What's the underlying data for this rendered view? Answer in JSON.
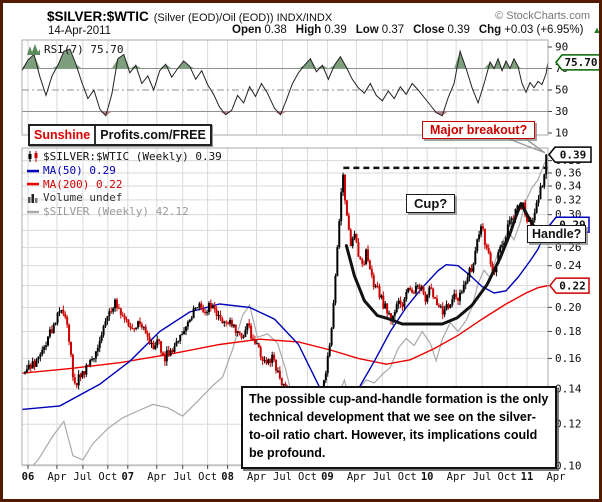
{
  "header": {
    "symbol": "$SILVER:$WTIC",
    "desc": "(Silver (EOD)/Oil (EOD)) INDX/INDX",
    "copyright": "© StockCharts.com",
    "date": "14-Apr-2011",
    "quote": [
      {
        "label": "Open",
        "value": "0.38"
      },
      {
        "label": "High",
        "value": "0.39"
      },
      {
        "label": "Low",
        "value": "0.37"
      },
      {
        "label": "Close",
        "value": "0.39"
      },
      {
        "label": "Chg",
        "value": "+0.03 (+6.95%)"
      }
    ],
    "chg_dir": "▲"
  },
  "rsi": {
    "label": "RSI(7) 75.70",
    "value_box": "75.70",
    "axis_labels": [
      "90",
      "70",
      "50",
      "30",
      "10"
    ],
    "axis_values": [
      90,
      70,
      50,
      30,
      10
    ]
  },
  "legend": [
    {
      "icon": "candlestick-icon",
      "text": "$SILVER:$WTIC (Weekly) 0.39",
      "color": "#111111"
    },
    {
      "icon": "ma50-dash-icon",
      "text": "MA(50) 0.29",
      "color": "#0000bb"
    },
    {
      "icon": "ma200-dash-icon",
      "text": "MA(200) 0.22",
      "color": "#cc0000"
    },
    {
      "icon": "volume-bars-icon",
      "text": "Volume undef",
      "color": "#333333"
    },
    {
      "icon": "silver-dash-icon",
      "text": "$SILVER (Weekly) 42.12",
      "color": "#999999"
    }
  ],
  "annotations": {
    "sunshine_left": "Sunshine",
    "sunshine_right": "Profits.com/FREE",
    "major_breakout": "Major breakout?",
    "cup": "Cup?",
    "handle": "Handle?",
    "commentary": "The possible cup-and-handle formation is the only technical development that we see on the silver-to-oil ratio chart. However, its implications could be profound.",
    "price_box": "0.39",
    "ma50_box": "0.29",
    "ma200_box": "0.22"
  },
  "axis": {
    "price_labels": [
      "0.38",
      "0.36",
      "0.34",
      "0.32",
      "0.30",
      "0.28",
      "0.26",
      "0.24",
      "0.22",
      "0.20",
      "0.18",
      "0.16",
      "0.14",
      "0.12",
      "0.10"
    ],
    "price_values": [
      0.38,
      0.36,
      0.34,
      0.32,
      0.3,
      0.28,
      0.26,
      0.24,
      0.22,
      0.2,
      0.18,
      0.16,
      0.14,
      0.12,
      0.1
    ],
    "time_labels": [
      [
        "06",
        2006.0,
        1
      ],
      [
        "Apr",
        2006.29,
        0
      ],
      [
        "Jul",
        2006.55,
        0
      ],
      [
        "Oct",
        2006.8,
        0
      ],
      [
        "07",
        2007.0,
        1
      ],
      [
        "Apr",
        2007.29,
        0
      ],
      [
        "Jul",
        2007.55,
        0
      ],
      [
        "Oct",
        2007.8,
        0
      ],
      [
        "08",
        2008.0,
        1
      ],
      [
        "Apr",
        2008.29,
        0
      ],
      [
        "Jul",
        2008.55,
        0
      ],
      [
        "Oct",
        2008.8,
        0
      ],
      [
        "09",
        2009.0,
        1
      ],
      [
        "Apr",
        2009.29,
        0
      ],
      [
        "Jul",
        2009.55,
        0
      ],
      [
        "Oct",
        2009.8,
        0
      ],
      [
        "10",
        2010.0,
        1
      ],
      [
        "Apr",
        2010.29,
        0
      ],
      [
        "Jul",
        2010.55,
        0
      ],
      [
        "Oct",
        2010.8,
        0
      ],
      [
        "11",
        2011.0,
        1
      ],
      [
        "Apr",
        2011.29,
        0
      ]
    ]
  },
  "chart_data": {
    "type": "candlestick",
    "title": "$SILVER:$WTIC weekly ratio with RSI(7), MA(50), MA(200) and $SILVER overlay",
    "price_scale": "log",
    "y_axis_range": [
      0.1,
      0.4
    ],
    "x_axis_years": [
      2006.0,
      2011.3
    ],
    "last_close": 0.39,
    "rsi_current": 75.7,
    "rsi_thresholds": [
      70,
      50,
      30
    ],
    "resistance_level": 0.368,
    "resistance_span": [
      2009.16,
      2011.22
    ],
    "ratio_close": [
      [
        2005.97,
        0.15
      ],
      [
        2006.04,
        0.155
      ],
      [
        2006.12,
        0.162
      ],
      [
        2006.2,
        0.175
      ],
      [
        2006.28,
        0.19
      ],
      [
        2006.34,
        0.2
      ],
      [
        2006.4,
        0.183
      ],
      [
        2006.46,
        0.14
      ],
      [
        2006.52,
        0.148
      ],
      [
        2006.58,
        0.152
      ],
      [
        2006.64,
        0.158
      ],
      [
        2006.7,
        0.17
      ],
      [
        2006.76,
        0.185
      ],
      [
        2006.82,
        0.198
      ],
      [
        2006.88,
        0.204
      ],
      [
        2006.94,
        0.195
      ],
      [
        2007.0,
        0.186
      ],
      [
        2007.06,
        0.182
      ],
      [
        2007.12,
        0.19
      ],
      [
        2007.18,
        0.178
      ],
      [
        2007.24,
        0.168
      ],
      [
        2007.3,
        0.173
      ],
      [
        2007.36,
        0.16
      ],
      [
        2007.42,
        0.165
      ],
      [
        2007.48,
        0.17
      ],
      [
        2007.54,
        0.176
      ],
      [
        2007.6,
        0.186
      ],
      [
        2007.66,
        0.199
      ],
      [
        2007.72,
        0.205
      ],
      [
        2007.78,
        0.195
      ],
      [
        2007.84,
        0.204
      ],
      [
        2007.9,
        0.195
      ],
      [
        2007.96,
        0.186
      ],
      [
        2008.02,
        0.191
      ],
      [
        2008.08,
        0.182
      ],
      [
        2008.14,
        0.176
      ],
      [
        2008.2,
        0.184
      ],
      [
        2008.26,
        0.174
      ],
      [
        2008.32,
        0.165
      ],
      [
        2008.39,
        0.155
      ],
      [
        2008.45,
        0.16
      ],
      [
        2008.51,
        0.15
      ],
      [
        2008.57,
        0.14
      ],
      [
        2008.63,
        0.13
      ],
      [
        2008.69,
        0.115
      ],
      [
        2008.75,
        0.1
      ],
      [
        2008.81,
        0.106
      ],
      [
        2008.87,
        0.12
      ],
      [
        2008.93,
        0.135
      ],
      [
        2008.99,
        0.152
      ],
      [
        2009.05,
        0.185
      ],
      [
        2009.11,
        0.27
      ],
      [
        2009.15,
        0.365
      ],
      [
        2009.19,
        0.3
      ],
      [
        2009.23,
        0.262
      ],
      [
        2009.27,
        0.278
      ],
      [
        2009.31,
        0.25
      ],
      [
        2009.35,
        0.24
      ],
      [
        2009.39,
        0.254
      ],
      [
        2009.43,
        0.235
      ],
      [
        2009.47,
        0.22
      ],
      [
        2009.51,
        0.214
      ],
      [
        2009.55,
        0.205
      ],
      [
        2009.59,
        0.198
      ],
      [
        2009.63,
        0.191
      ],
      [
        2009.67,
        0.196
      ],
      [
        2009.71,
        0.205
      ],
      [
        2009.75,
        0.198
      ],
      [
        2009.79,
        0.21
      ],
      [
        2009.83,
        0.22
      ],
      [
        2009.87,
        0.214
      ],
      [
        2009.91,
        0.224
      ],
      [
        2009.95,
        0.214
      ],
      [
        2009.99,
        0.205
      ],
      [
        2010.03,
        0.22
      ],
      [
        2010.07,
        0.21
      ],
      [
        2010.11,
        0.202
      ],
      [
        2010.15,
        0.196
      ],
      [
        2010.19,
        0.205
      ],
      [
        2010.23,
        0.198
      ],
      [
        2010.27,
        0.21
      ],
      [
        2010.31,
        0.205
      ],
      [
        2010.35,
        0.216
      ],
      [
        2010.39,
        0.225
      ],
      [
        2010.43,
        0.235
      ],
      [
        2010.47,
        0.245
      ],
      [
        2010.51,
        0.27
      ],
      [
        2010.55,
        0.285
      ],
      [
        2010.59,
        0.258
      ],
      [
        2010.63,
        0.245
      ],
      [
        2010.67,
        0.235
      ],
      [
        2010.71,
        0.25
      ],
      [
        2010.75,
        0.262
      ],
      [
        2010.79,
        0.275
      ],
      [
        2010.83,
        0.29
      ],
      [
        2010.87,
        0.3
      ],
      [
        2010.91,
        0.31
      ],
      [
        2010.95,
        0.315
      ],
      [
        2010.99,
        0.3
      ],
      [
        2011.03,
        0.285
      ],
      [
        2011.07,
        0.295
      ],
      [
        2011.11,
        0.32
      ],
      [
        2011.15,
        0.34
      ],
      [
        2011.19,
        0.37
      ],
      [
        2011.21,
        0.39
      ]
    ],
    "ma50": [
      [
        2005.94,
        0.128
      ],
      [
        2006.32,
        0.13
      ],
      [
        2006.72,
        0.143
      ],
      [
        2007.02,
        0.158
      ],
      [
        2007.32,
        0.18
      ],
      [
        2007.62,
        0.196
      ],
      [
        2007.92,
        0.203
      ],
      [
        2008.22,
        0.2
      ],
      [
        2008.47,
        0.19
      ],
      [
        2008.71,
        0.17
      ],
      [
        2008.93,
        0.14
      ],
      [
        2009.03,
        0.127
      ],
      [
        2009.13,
        0.125
      ],
      [
        2009.31,
        0.14
      ],
      [
        2009.47,
        0.158
      ],
      [
        2009.63,
        0.18
      ],
      [
        2009.79,
        0.2
      ],
      [
        2009.95,
        0.218
      ],
      [
        2010.11,
        0.235
      ],
      [
        2010.19,
        0.241
      ],
      [
        2010.31,
        0.24
      ],
      [
        2010.43,
        0.23
      ],
      [
        2010.55,
        0.219
      ],
      [
        2010.67,
        0.213
      ],
      [
        2010.79,
        0.215
      ],
      [
        2010.91,
        0.228
      ],
      [
        2011.03,
        0.245
      ],
      [
        2011.11,
        0.258
      ],
      [
        2011.21,
        0.285
      ]
    ],
    "ma200": [
      [
        2005.94,
        0.15
      ],
      [
        2006.42,
        0.153
      ],
      [
        2006.92,
        0.157
      ],
      [
        2007.42,
        0.163
      ],
      [
        2007.92,
        0.17
      ],
      [
        2008.32,
        0.174
      ],
      [
        2008.71,
        0.172
      ],
      [
        2009.03,
        0.166
      ],
      [
        2009.31,
        0.16
      ],
      [
        2009.59,
        0.156
      ],
      [
        2009.83,
        0.159
      ],
      [
        2010.07,
        0.167
      ],
      [
        2010.31,
        0.177
      ],
      [
        2010.55,
        0.19
      ],
      [
        2010.79,
        0.203
      ],
      [
        2010.99,
        0.213
      ],
      [
        2011.11,
        0.218
      ],
      [
        2011.21,
        0.22
      ]
    ],
    "silver": [
      [
        2005.94,
        8.8
      ],
      [
        2006.1,
        9.6
      ],
      [
        2006.25,
        10.8
      ],
      [
        2006.36,
        11.6
      ],
      [
        2006.45,
        9.8
      ],
      [
        2006.55,
        9.6
      ],
      [
        2006.65,
        10.4
      ],
      [
        2006.8,
        11.2
      ],
      [
        2006.95,
        11.8
      ],
      [
        2007.1,
        12.2
      ],
      [
        2007.25,
        12.6
      ],
      [
        2007.4,
        12.4
      ],
      [
        2007.55,
        11.9
      ],
      [
        2007.7,
        12.8
      ],
      [
        2007.85,
        13.8
      ],
      [
        2007.95,
        14.4
      ],
      [
        2008.05,
        16.5
      ],
      [
        2008.15,
        19.5
      ],
      [
        2008.22,
        20.5
      ],
      [
        2008.3,
        17.5
      ],
      [
        2008.4,
        17.8
      ],
      [
        2008.5,
        17.0
      ],
      [
        2008.58,
        15.0
      ],
      [
        2008.65,
        13.0
      ],
      [
        2008.72,
        10.5
      ],
      [
        2008.78,
        9.0
      ],
      [
        2008.85,
        9.6
      ],
      [
        2008.93,
        10.8
      ],
      [
        2009.01,
        11.4
      ],
      [
        2009.1,
        13.0
      ],
      [
        2009.17,
        14.2
      ],
      [
        2009.23,
        12.6
      ],
      [
        2009.31,
        13.6
      ],
      [
        2009.39,
        14.2
      ],
      [
        2009.47,
        14.0
      ],
      [
        2009.55,
        14.6
      ],
      [
        2009.63,
        15.1
      ],
      [
        2009.71,
        16.6
      ],
      [
        2009.79,
        17.4
      ],
      [
        2009.87,
        16.8
      ],
      [
        2009.95,
        18.0
      ],
      [
        2010.03,
        17.0
      ],
      [
        2010.09,
        15.6
      ],
      [
        2010.15,
        17.3
      ],
      [
        2010.23,
        18.8
      ],
      [
        2010.31,
        18.0
      ],
      [
        2010.39,
        19.0
      ],
      [
        2010.45,
        20.3
      ],
      [
        2010.51,
        22.8
      ],
      [
        2010.57,
        24.3
      ],
      [
        2010.63,
        23.4
      ],
      [
        2010.69,
        25.8
      ],
      [
        2010.75,
        27.8
      ],
      [
        2010.81,
        29.4
      ],
      [
        2010.87,
        28.2
      ],
      [
        2010.93,
        30.6
      ],
      [
        2010.99,
        34.2
      ],
      [
        2011.05,
        36.4
      ],
      [
        2011.11,
        37.8
      ],
      [
        2011.17,
        40.8
      ],
      [
        2011.21,
        42.12
      ]
    ],
    "rsi7": [
      [
        2005.94,
        68
      ],
      [
        2006.0,
        78
      ],
      [
        2006.06,
        83
      ],
      [
        2006.12,
        62
      ],
      [
        2006.18,
        45
      ],
      [
        2006.24,
        63
      ],
      [
        2006.3,
        73
      ],
      [
        2006.36,
        86
      ],
      [
        2006.42,
        88
      ],
      [
        2006.48,
        74
      ],
      [
        2006.54,
        57
      ],
      [
        2006.6,
        42
      ],
      [
        2006.66,
        50
      ],
      [
        2006.72,
        32
      ],
      [
        2006.78,
        26
      ],
      [
        2006.84,
        46
      ],
      [
        2006.9,
        79
      ],
      [
        2006.96,
        83
      ],
      [
        2007.02,
        66
      ],
      [
        2007.08,
        73
      ],
      [
        2007.14,
        56
      ],
      [
        2007.2,
        63
      ],
      [
        2007.26,
        50
      ],
      [
        2007.32,
        68
      ],
      [
        2007.38,
        74
      ],
      [
        2007.44,
        62
      ],
      [
        2007.5,
        70
      ],
      [
        2007.56,
        77
      ],
      [
        2007.62,
        72
      ],
      [
        2007.68,
        60
      ],
      [
        2007.74,
        68
      ],
      [
        2007.8,
        55
      ],
      [
        2007.86,
        46
      ],
      [
        2007.92,
        34
      ],
      [
        2007.98,
        27
      ],
      [
        2008.04,
        31
      ],
      [
        2008.1,
        45
      ],
      [
        2008.16,
        38
      ],
      [
        2008.22,
        53
      ],
      [
        2008.28,
        44
      ],
      [
        2008.34,
        56
      ],
      [
        2008.4,
        47
      ],
      [
        2008.47,
        33
      ],
      [
        2008.53,
        27
      ],
      [
        2008.59,
        41
      ],
      [
        2008.65,
        56
      ],
      [
        2008.71,
        66
      ],
      [
        2008.77,
        73
      ],
      [
        2008.83,
        79
      ],
      [
        2008.89,
        67
      ],
      [
        2008.95,
        73
      ],
      [
        2009.01,
        60
      ],
      [
        2009.07,
        73
      ],
      [
        2009.13,
        81
      ],
      [
        2009.19,
        71
      ],
      [
        2009.25,
        60
      ],
      [
        2009.31,
        52
      ],
      [
        2009.37,
        47
      ],
      [
        2009.43,
        56
      ],
      [
        2009.49,
        45
      ],
      [
        2009.55,
        40
      ],
      [
        2009.61,
        49
      ],
      [
        2009.67,
        42
      ],
      [
        2009.73,
        53
      ],
      [
        2009.79,
        46
      ],
      [
        2009.85,
        56
      ],
      [
        2009.91,
        50
      ],
      [
        2009.97,
        43
      ],
      [
        2010.03,
        36
      ],
      [
        2010.09,
        29
      ],
      [
        2010.15,
        26
      ],
      [
        2010.21,
        43
      ],
      [
        2010.27,
        56
      ],
      [
        2010.33,
        86
      ],
      [
        2010.39,
        70
      ],
      [
        2010.45,
        52
      ],
      [
        2010.51,
        38
      ],
      [
        2010.57,
        56
      ],
      [
        2010.63,
        76
      ],
      [
        2010.67,
        70
      ],
      [
        2010.71,
        79
      ],
      [
        2010.75,
        68
      ],
      [
        2010.79,
        77
      ],
      [
        2010.83,
        70
      ],
      [
        2010.87,
        79
      ],
      [
        2010.91,
        72
      ],
      [
        2010.95,
        56
      ],
      [
        2010.99,
        48
      ],
      [
        2011.03,
        57
      ],
      [
        2011.07,
        52
      ],
      [
        2011.11,
        58
      ],
      [
        2011.15,
        55
      ],
      [
        2011.19,
        65
      ],
      [
        2011.21,
        75.7
      ]
    ],
    "cup_handle_path": [
      [
        2009.19,
        0.262
      ],
      [
        2009.27,
        0.23
      ],
      [
        2009.37,
        0.206
      ],
      [
        2009.5,
        0.193
      ],
      [
        2009.62,
        0.19
      ],
      [
        2009.75,
        0.186
      ],
      [
        2010.15,
        0.186
      ],
      [
        2010.3,
        0.191
      ],
      [
        2010.45,
        0.202
      ],
      [
        2010.6,
        0.221
      ],
      [
        2010.73,
        0.248
      ],
      [
        2010.83,
        0.276
      ],
      [
        2010.89,
        0.298
      ],
      [
        2010.94,
        0.315
      ],
      [
        2011.0,
        0.3
      ],
      [
        2011.06,
        0.287
      ],
      [
        2011.11,
        0.278
      ]
    ]
  },
  "colors": {
    "candle_up": "#000000",
    "candle_down": "#cc0000",
    "ma50": "#0000bb",
    "ma200": "#ee0000",
    "silver_line": "#a9a9a9",
    "rsi_line": "#222222",
    "rsi_over_fill": "#7e9f7e",
    "rsi_under_fill": "#bb8484",
    "grid": "#dadada",
    "panel_border": "#aaaaaa",
    "frame_border": "#521a00",
    "accent_red": "#cc0000",
    "accent_green": "#006400"
  }
}
